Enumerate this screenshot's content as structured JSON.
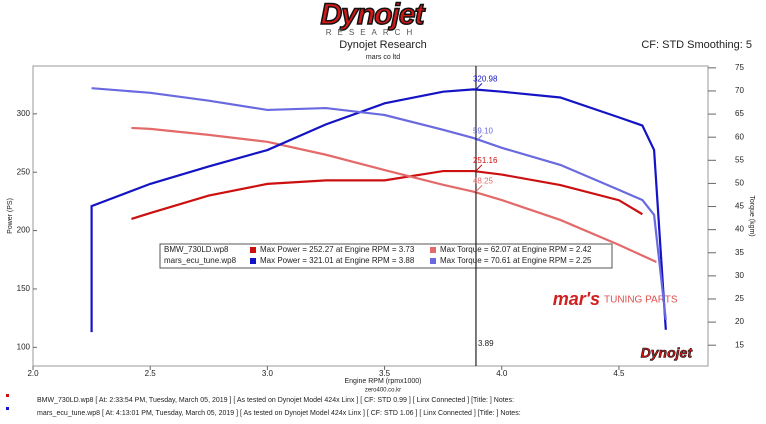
{
  "header": {
    "logo": "Dynojet",
    "logo_sub": "RESEARCH",
    "title": "Dynojet Research",
    "subtitle": "mars co ltd",
    "settings": "CF: STD Smoothing: 5"
  },
  "chart_data": {
    "type": "line",
    "x_label": "Engine RPM (rpmx1000)",
    "y_label": "Power (PS)",
    "y2_label": "Torque (kgm)",
    "source": "zero400.co.kr",
    "xlim": [
      2.0,
      4.88
    ],
    "xticks": [
      {
        "value": 2,
        "label": "2.0"
      },
      2.5,
      {
        "value": 3,
        "label": "3.0"
      },
      3.5,
      {
        "value": 4,
        "label": "4.0"
      },
      4.5
    ],
    "ylim": [
      84,
      341
    ],
    "yticks": [
      100,
      150,
      200,
      250,
      300
    ],
    "y2lim": [
      10.5,
      75.4
    ],
    "y2ticks": [
      15,
      20,
      25,
      30,
      35,
      40,
      45,
      50,
      55,
      60,
      65,
      70,
      75
    ],
    "series": [
      {
        "name": "BMW_730LD.wp8 Power",
        "color": "#cc1010",
        "axis": "y",
        "x": [
          2.42,
          2.5,
          2.75,
          3.0,
          3.25,
          3.5,
          3.75,
          3.88,
          4.0,
          4.25,
          4.5,
          4.6
        ],
        "values": [
          210,
          215,
          230,
          240,
          243,
          243,
          251,
          251,
          248,
          239,
          226,
          214
        ]
      },
      {
        "name": "BMW_730LD.wp8 Torque",
        "color": "#e46a6a",
        "axis": "y2",
        "x": [
          2.42,
          2.5,
          2.75,
          3.0,
          3.25,
          3.5,
          3.75,
          3.88,
          4.0,
          4.25,
          4.5,
          4.66
        ],
        "values": [
          62.0,
          61.8,
          60.5,
          59.0,
          56.2,
          52.9,
          49.7,
          48.2,
          46.4,
          42.1,
          36.7,
          33.0
        ]
      },
      {
        "name": "mars_ecu_tune.wp8 Power",
        "color": "#1414c4",
        "axis": "y",
        "x": [
          2.25,
          2.25,
          2.5,
          2.75,
          3.0,
          3.25,
          3.5,
          3.75,
          3.88,
          4.0,
          4.25,
          4.5,
          4.6,
          4.65,
          4.7
        ],
        "values": [
          113,
          221,
          240,
          255,
          269,
          291,
          309,
          319,
          321,
          319,
          314,
          297,
          290,
          269,
          115
        ]
      },
      {
        "name": "mars_ecu_tune.wp8 Torque",
        "color": "#6a6ae0",
        "axis": "y2",
        "x": [
          2.25,
          2.5,
          2.75,
          3.0,
          3.25,
          3.5,
          3.75,
          3.88,
          4.0,
          4.25,
          4.5,
          4.6,
          4.65,
          4.7
        ],
        "values": [
          70.6,
          69.6,
          67.9,
          65.9,
          66.3,
          64.8,
          61.6,
          59.8,
          57.7,
          54.0,
          48.6,
          46.4,
          43.2,
          20.5
        ]
      }
    ],
    "cursor": {
      "x": 3.89,
      "values": [
        251.16,
        48.25,
        320.98,
        59.1
      ],
      "value_labels": [
        "251.16",
        "48.25",
        "320.98",
        "59.10"
      ]
    },
    "legend": {
      "rows": [
        {
          "name": "BMW_730LD.wp8",
          "power": "Max Power = 252.27 at Engine RPM = 3.73",
          "torque": "Max Torque = 62.07 at Engine RPM = 2.42"
        },
        {
          "name": "mars_ecu_tune.wp8",
          "power": "Max Power = 321.01 at Engine RPM = 3.88",
          "torque": "Max Torque = 70.61 at Engine RPM = 2.25"
        }
      ]
    },
    "watermark": {
      "brand": "mar's",
      "text": "TUNING PARTS"
    }
  },
  "footer": {
    "runs": [
      "BMW_730LD.wp8 [ At: 2:33:54 PM, Tuesday, March 05, 2019 ] [ As tested on Dynojet Model 424x Linx ] [ CF: STD 0.99 ] [ Linx Connected ] [Title: ]   Notes:",
      "mars_ecu_tune.wp8 [ At: 4:13:01 PM, Tuesday, March 05, 2019 ] [ As tested on Dynojet Model 424x Linx ] [ CF: STD 1.06 ] [ Linx Connected ] [Title: ]   Notes:"
    ]
  }
}
